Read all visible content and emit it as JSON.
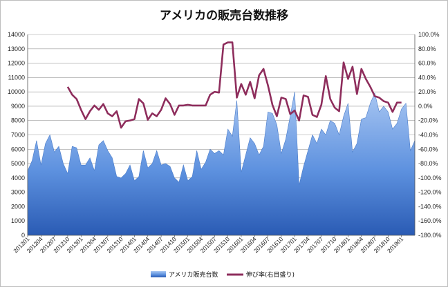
{
  "chart_data": {
    "type": "area",
    "title": "アメリカの販売台数推移",
    "left_axis": {
      "ticks": [
        "0",
        "1000",
        "2000",
        "3000",
        "4000",
        "5000",
        "6000",
        "7000",
        "8000",
        "9000",
        "10000",
        "11000",
        "12000",
        "13000",
        "14000"
      ],
      "min": 0,
      "max": 14000
    },
    "right_axis": {
      "ticks": [
        "100.0%",
        "80.0%",
        "60.0%",
        "40.0%",
        "20.0%",
        "0.0%",
        "-20.0%",
        "-40.0%",
        "-60.0%",
        "-80.0%",
        "-100.0%",
        "-120.0%",
        "-140.0%",
        "-160.0%",
        "-180.0%"
      ],
      "min": -180,
      "max": 100
    },
    "x_tick_labels": [
      "201201",
      "201204",
      "201207",
      "201210",
      "201301",
      "201304",
      "201307",
      "201310",
      "201401",
      "201404",
      "201407",
      "201410",
      "201501",
      "201504",
      "201507",
      "201510",
      "201601",
      "201604",
      "201607",
      "201610",
      "201701",
      "201704",
      "201707",
      "201710",
      "201801",
      "201804",
      "201807",
      "201810",
      "201901"
    ],
    "series": [
      {
        "name": "アメリカ販売台数",
        "kind": "area",
        "axis": "left",
        "color": "#5b8fe0",
        "values": [
          4500,
          5200,
          6600,
          4900,
          6400,
          7000,
          5800,
          6200,
          5000,
          4300,
          6200,
          6100,
          4900,
          4900,
          5400,
          4500,
          6300,
          6600,
          5900,
          5400,
          4100,
          4000,
          4300,
          4900,
          3800,
          4100,
          5900,
          4700,
          5000,
          5900,
          4900,
          5000,
          4800,
          4000,
          3700,
          4900,
          3800,
          4100,
          5900,
          4600,
          5100,
          6000,
          5700,
          5900,
          5600,
          7400,
          6900,
          9400,
          4400,
          5600,
          6800,
          6400,
          5600,
          6200,
          8600,
          8500,
          7700,
          5700,
          6700,
          8300,
          10000,
          3500,
          4800,
          5900,
          7000,
          6400,
          7400,
          7000,
          8000,
          7800,
          7000,
          8300,
          9200,
          5800,
          6400,
          8100,
          8200,
          9200,
          9900,
          8600,
          9000,
          8600,
          7400,
          7800,
          8800,
          9200,
          5900,
          6600
        ]
      },
      {
        "name": "伸び率(右目盛り)",
        "kind": "line",
        "axis": "right",
        "color": "#8e2d5c",
        "start_index": 9,
        "values": [
          27,
          16,
          10,
          -5,
          -18,
          -7,
          1,
          -5,
          3,
          -10,
          -14,
          -7,
          -30,
          -21,
          -20,
          -18,
          10,
          4,
          -19,
          -10,
          -14,
          -5,
          11,
          3,
          -12,
          1,
          1,
          2,
          1,
          1,
          1,
          1,
          16,
          20,
          19,
          86,
          89,
          89,
          12,
          31,
          16,
          34,
          11,
          43,
          52,
          29,
          2,
          -14,
          12,
          10,
          -11,
          -6,
          -20,
          15,
          13,
          -12,
          -15,
          2,
          42,
          10,
          -2,
          -7,
          61,
          38,
          55,
          17,
          52,
          38,
          27,
          14,
          12,
          7,
          5,
          -8,
          5,
          5
        ]
      }
    ]
  }
}
